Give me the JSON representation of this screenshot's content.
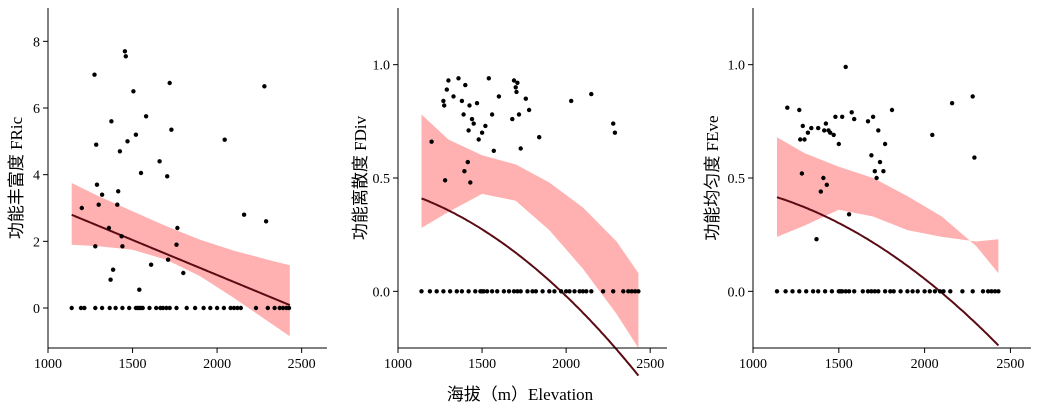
{
  "figure": {
    "shared_xlabel": "海拔（m）Elevation"
  },
  "chart_data": [
    {
      "type": "scatter",
      "ylabel": "功能丰富度  FRic",
      "xlim": [
        1000,
        2650
      ],
      "ylim": [
        -1.2,
        9
      ],
      "xticks": [
        1000,
        1500,
        2000,
        2500
      ],
      "yticks": [
        0,
        2,
        4,
        6,
        8
      ],
      "fit": {
        "type": "polynomial-2",
        "coef": [
          5.19,
          -0.0021,
          0.0
        ],
        "x_range": [
          1140,
          2430
        ],
        "ci_upper": [
          [
            1140,
            3.75
          ],
          [
            1300,
            3.35
          ],
          [
            1500,
            2.9
          ],
          [
            1700,
            2.45
          ],
          [
            1900,
            2.05
          ],
          [
            2100,
            1.72
          ],
          [
            2300,
            1.45
          ],
          [
            2430,
            1.28
          ]
        ],
        "ci_lower": [
          [
            1140,
            1.9
          ],
          [
            1300,
            1.85
          ],
          [
            1500,
            1.75
          ],
          [
            1700,
            1.45
          ],
          [
            1900,
            0.95
          ],
          [
            2100,
            0.3
          ],
          [
            2300,
            -0.4
          ],
          [
            2430,
            -0.85
          ]
        ],
        "line_color": "#5a0b14",
        "band_color": "#ffb0b0"
      },
      "points": [
        [
          1140,
          0
        ],
        [
          1195,
          0
        ],
        [
          1215,
          0
        ],
        [
          1280,
          0
        ],
        [
          1320,
          0
        ],
        [
          1365,
          0
        ],
        [
          1400,
          0
        ],
        [
          1440,
          0
        ],
        [
          1480,
          0
        ],
        [
          1520,
          0
        ],
        [
          1530,
          0
        ],
        [
          1540,
          0
        ],
        [
          1550,
          0
        ],
        [
          1560,
          0
        ],
        [
          1600,
          0
        ],
        [
          1640,
          0
        ],
        [
          1665,
          0
        ],
        [
          1680,
          0
        ],
        [
          1700,
          0
        ],
        [
          1720,
          0
        ],
        [
          1760,
          0
        ],
        [
          1820,
          0
        ],
        [
          1870,
          0
        ],
        [
          1920,
          0
        ],
        [
          1960,
          0
        ],
        [
          2000,
          0
        ],
        [
          2040,
          0
        ],
        [
          2080,
          0
        ],
        [
          2100,
          0
        ],
        [
          2120,
          0
        ],
        [
          2140,
          0
        ],
        [
          2230,
          0
        ],
        [
          2300,
          0
        ],
        [
          2340,
          0
        ],
        [
          2370,
          0
        ],
        [
          2390,
          0
        ],
        [
          2410,
          0
        ],
        [
          2425,
          0
        ],
        [
          1200,
          3.0
        ],
        [
          1275,
          7.0
        ],
        [
          1280,
          1.85
        ],
        [
          1285,
          4.9
        ],
        [
          1290,
          3.7
        ],
        [
          1300,
          3.1
        ],
        [
          1320,
          3.4
        ],
        [
          1360,
          2.4
        ],
        [
          1370,
          0.85
        ],
        [
          1375,
          5.6
        ],
        [
          1385,
          1.15
        ],
        [
          1410,
          3.1
        ],
        [
          1415,
          3.5
        ],
        [
          1425,
          4.7
        ],
        [
          1435,
          2.15
        ],
        [
          1440,
          1.85
        ],
        [
          1455,
          7.7
        ],
        [
          1460,
          7.55
        ],
        [
          1470,
          5.0
        ],
        [
          1505,
          6.5
        ],
        [
          1520,
          5.2
        ],
        [
          1540,
          0.55
        ],
        [
          1550,
          4.05
        ],
        [
          1580,
          5.75
        ],
        [
          1610,
          1.3
        ],
        [
          1660,
          4.4
        ],
        [
          1705,
          3.95
        ],
        [
          1710,
          1.45
        ],
        [
          1720,
          6.75
        ],
        [
          1730,
          5.35
        ],
        [
          1760,
          1.9
        ],
        [
          1765,
          2.4
        ],
        [
          1800,
          1.05
        ],
        [
          2045,
          5.05
        ],
        [
          2160,
          2.8
        ],
        [
          2280,
          6.65
        ],
        [
          2290,
          2.6
        ]
      ]
    },
    {
      "type": "scatter",
      "ylabel": "功能离散度  FDiv",
      "xlim": [
        1000,
        2600
      ],
      "ylim": [
        -0.25,
        1.25
      ],
      "xticks": [
        1000,
        1500,
        2000,
        2500
      ],
      "yticks": [
        0.0,
        0.5,
        1.0
      ],
      "ytick_labels": [
        "0.0",
        "0.5",
        "1.0"
      ],
      "fit": {
        "type": "polynomial-2",
        "coef": [
          0.425,
          0.000265,
          -2.44e-07
        ],
        "x_range": [
          1140,
          2430
        ],
        "ci_upper": [
          [
            1140,
            0.78
          ],
          [
            1300,
            0.67
          ],
          [
            1500,
            0.6
          ],
          [
            1700,
            0.56
          ],
          [
            1900,
            0.48
          ],
          [
            2100,
            0.37
          ],
          [
            2300,
            0.22
          ],
          [
            2430,
            0.08
          ]
        ],
        "ci_lower": [
          [
            1140,
            0.28
          ],
          [
            1300,
            0.35
          ],
          [
            1500,
            0.43
          ],
          [
            1700,
            0.4
          ],
          [
            1900,
            0.27
          ],
          [
            2100,
            0.1
          ],
          [
            2300,
            -0.1
          ],
          [
            2430,
            -0.25
          ]
        ],
        "line_color": "#5a0b14",
        "band_color": "#ffb0b0"
      },
      "points": [
        [
          1140,
          0
        ],
        [
          1190,
          0
        ],
        [
          1230,
          0
        ],
        [
          1270,
          0
        ],
        [
          1310,
          0
        ],
        [
          1350,
          0
        ],
        [
          1380,
          0
        ],
        [
          1420,
          0
        ],
        [
          1460,
          0
        ],
        [
          1490,
          0
        ],
        [
          1500,
          0
        ],
        [
          1510,
          0
        ],
        [
          1530,
          0
        ],
        [
          1560,
          0
        ],
        [
          1590,
          0
        ],
        [
          1630,
          0
        ],
        [
          1660,
          0
        ],
        [
          1690,
          0
        ],
        [
          1710,
          0
        ],
        [
          1730,
          0
        ],
        [
          1770,
          0
        ],
        [
          1800,
          0
        ],
        [
          1820,
          0
        ],
        [
          1860,
          0
        ],
        [
          1900,
          0
        ],
        [
          1930,
          0
        ],
        [
          1970,
          0
        ],
        [
          2000,
          0
        ],
        [
          2020,
          0
        ],
        [
          2050,
          0
        ],
        [
          2080,
          0
        ],
        [
          2100,
          0
        ],
        [
          2120,
          0
        ],
        [
          2150,
          0
        ],
        [
          2220,
          0
        ],
        [
          2280,
          0
        ],
        [
          2340,
          0
        ],
        [
          2370,
          0
        ],
        [
          2390,
          0
        ],
        [
          2410,
          0
        ],
        [
          2430,
          0
        ],
        [
          1200,
          0.66
        ],
        [
          1270,
          0.84
        ],
        [
          1275,
          0.82
        ],
        [
          1280,
          0.49
        ],
        [
          1290,
          0.89
        ],
        [
          1300,
          0.93
        ],
        [
          1330,
          0.86
        ],
        [
          1360,
          0.94
        ],
        [
          1380,
          0.84
        ],
        [
          1390,
          0.78
        ],
        [
          1395,
          0.53
        ],
        [
          1400,
          0.91
        ],
        [
          1415,
          0.57
        ],
        [
          1420,
          0.71
        ],
        [
          1425,
          0.82
        ],
        [
          1430,
          0.48
        ],
        [
          1440,
          0.76
        ],
        [
          1450,
          0.74
        ],
        [
          1470,
          0.83
        ],
        [
          1480,
          0.67
        ],
        [
          1500,
          0.7
        ],
        [
          1520,
          0.73
        ],
        [
          1540,
          0.94
        ],
        [
          1560,
          0.78
        ],
        [
          1570,
          0.62
        ],
        [
          1600,
          0.86
        ],
        [
          1680,
          0.76
        ],
        [
          1690,
          0.93
        ],
        [
          1700,
          0.9
        ],
        [
          1705,
          0.88
        ],
        [
          1710,
          0.92
        ],
        [
          1720,
          0.78
        ],
        [
          1730,
          0.63
        ],
        [
          1760,
          0.85
        ],
        [
          1780,
          0.8
        ],
        [
          1840,
          0.68
        ],
        [
          2030,
          0.84
        ],
        [
          2150,
          0.87
        ],
        [
          2280,
          0.74
        ],
        [
          2290,
          0.7
        ]
      ]
    },
    {
      "type": "scatter",
      "ylabel": "功能均匀度  FEve",
      "xlim": [
        1000,
        2620
      ],
      "ylim": [
        -0.25,
        1.25
      ],
      "xticks": [
        1000,
        1500,
        2000,
        2500
      ],
      "yticks": [
        0.0,
        0.5,
        1.0
      ],
      "ytick_labels": [
        "0.0",
        "0.5",
        "1.0"
      ],
      "fit": {
        "type": "polynomial-2",
        "coef": [
          0.425,
          0.000225,
          -2.05e-07
        ],
        "x_range": [
          1140,
          2430
        ],
        "ci_upper": [
          [
            1140,
            0.68
          ],
          [
            1300,
            0.61
          ],
          [
            1500,
            0.55
          ],
          [
            1700,
            0.5
          ],
          [
            1900,
            0.42
          ],
          [
            2100,
            0.33
          ],
          [
            2300,
            0.2
          ],
          [
            2430,
            0.08
          ]
        ],
        "ci_lower": [
          [
            1140,
            0.24
          ],
          [
            1300,
            0.29
          ],
          [
            1500,
            0.36
          ],
          [
            1700,
            0.33
          ],
          [
            1900,
            0.27
          ],
          [
            2100,
            0.24
          ],
          [
            2300,
            0.22
          ],
          [
            2430,
            0.23
          ]
        ],
        "line_color": "#5a0b14",
        "band_color": "#ffb0b0"
      },
      "points": [
        [
          1140,
          0
        ],
        [
          1190,
          0
        ],
        [
          1230,
          0
        ],
        [
          1270,
          0
        ],
        [
          1310,
          0
        ],
        [
          1350,
          0
        ],
        [
          1380,
          0
        ],
        [
          1420,
          0
        ],
        [
          1460,
          0
        ],
        [
          1500,
          0
        ],
        [
          1510,
          0
        ],
        [
          1520,
          0
        ],
        [
          1540,
          0
        ],
        [
          1560,
          0
        ],
        [
          1590,
          0
        ],
        [
          1640,
          0
        ],
        [
          1670,
          0
        ],
        [
          1690,
          0
        ],
        [
          1710,
          0
        ],
        [
          1730,
          0
        ],
        [
          1770,
          0
        ],
        [
          1800,
          0
        ],
        [
          1820,
          0
        ],
        [
          1860,
          0
        ],
        [
          1900,
          0
        ],
        [
          1930,
          0
        ],
        [
          1960,
          0
        ],
        [
          2000,
          0
        ],
        [
          2030,
          0
        ],
        [
          2060,
          0
        ],
        [
          2090,
          0
        ],
        [
          2110,
          0
        ],
        [
          2150,
          0
        ],
        [
          2220,
          0
        ],
        [
          2280,
          0
        ],
        [
          2340,
          0
        ],
        [
          2370,
          0
        ],
        [
          2390,
          0
        ],
        [
          2410,
          0
        ],
        [
          2430,
          0
        ],
        [
          1200,
          0.81
        ],
        [
          1270,
          0.8
        ],
        [
          1275,
          0.67
        ],
        [
          1285,
          0.52
        ],
        [
          1290,
          0.73
        ],
        [
          1300,
          0.67
        ],
        [
          1320,
          0.7
        ],
        [
          1340,
          0.72
        ],
        [
          1370,
          0.23
        ],
        [
          1380,
          0.72
        ],
        [
          1395,
          0.44
        ],
        [
          1410,
          0.5
        ],
        [
          1415,
          0.71
        ],
        [
          1425,
          0.74
        ],
        [
          1430,
          0.47
        ],
        [
          1440,
          0.71
        ],
        [
          1450,
          0.7
        ],
        [
          1470,
          0.69
        ],
        [
          1480,
          0.77
        ],
        [
          1500,
          0.65
        ],
        [
          1520,
          0.77
        ],
        [
          1540,
          0.99
        ],
        [
          1560,
          0.34
        ],
        [
          1575,
          0.79
        ],
        [
          1590,
          0.76
        ],
        [
          1670,
          0.75
        ],
        [
          1690,
          0.6
        ],
        [
          1700,
          0.77
        ],
        [
          1710,
          0.53
        ],
        [
          1720,
          0.5
        ],
        [
          1730,
          0.71
        ],
        [
          1740,
          0.57
        ],
        [
          1760,
          0.53
        ],
        [
          1770,
          0.65
        ],
        [
          1810,
          0.8
        ],
        [
          2045,
          0.69
        ],
        [
          2160,
          0.83
        ],
        [
          2280,
          0.86
        ],
        [
          2290,
          0.59
        ]
      ]
    }
  ]
}
